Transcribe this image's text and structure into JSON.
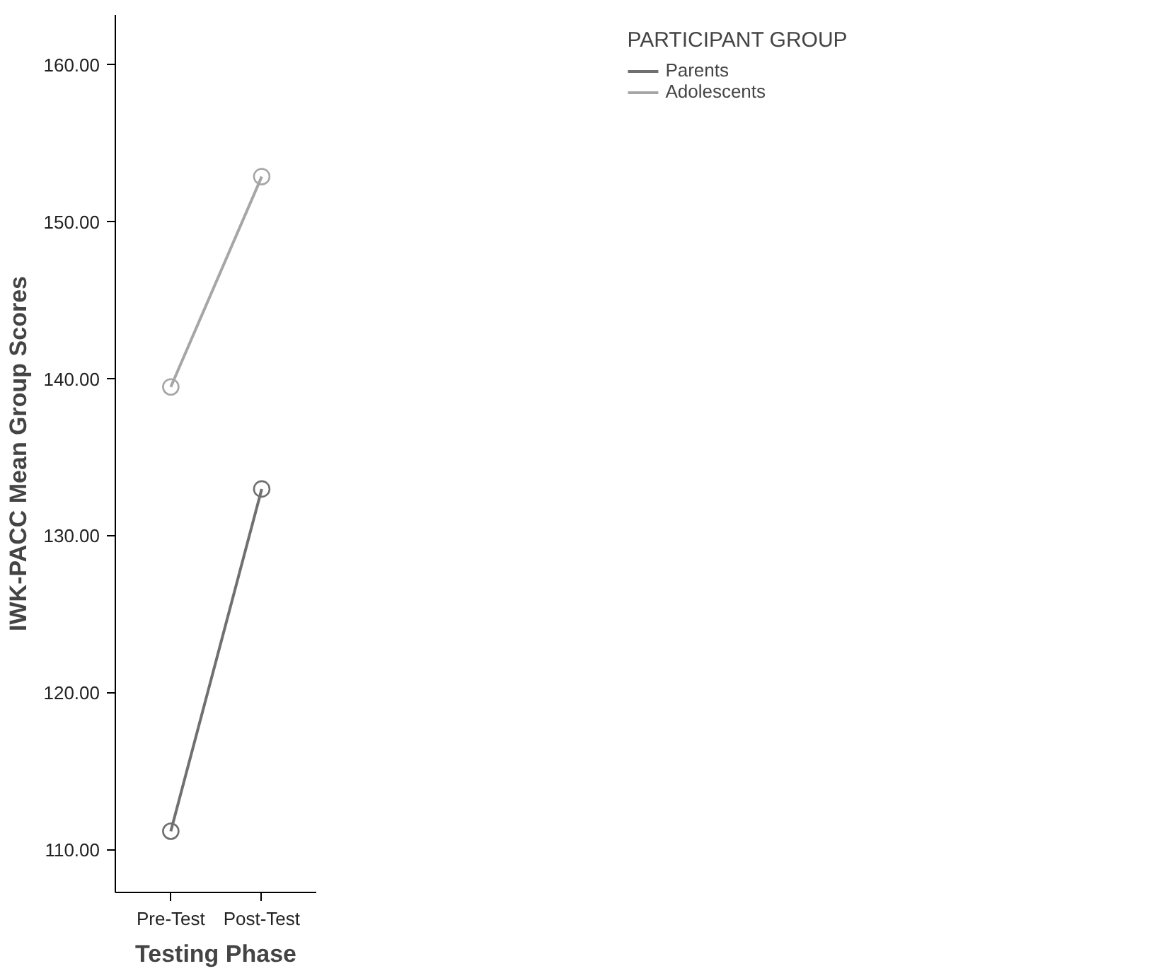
{
  "chart_data": {
    "type": "line",
    "xlabel": "Testing Phase",
    "ylabel": "IWK-PACC Mean Group Scores",
    "legend_title": "PARTICIPANT GROUP",
    "categories": [
      "Pre-Test",
      "Post-Test"
    ],
    "series": [
      {
        "name": "Parents",
        "color": "#707070",
        "values": [
          111.2,
          133.0
        ]
      },
      {
        "name": "Adolescents",
        "color": "#a6a6a6",
        "values": [
          139.5,
          152.9
        ]
      }
    ],
    "ylim": [
      107.3,
      163.2
    ],
    "yticks": [
      {
        "value": 110,
        "label": "110.00"
      },
      {
        "value": 120,
        "label": "120.00"
      },
      {
        "value": 130,
        "label": "130.00"
      },
      {
        "value": 140,
        "label": "140.00"
      },
      {
        "value": 150,
        "label": "150.00"
      },
      {
        "value": 160,
        "label": "160.00"
      }
    ],
    "grid": false,
    "legend": "top right",
    "marker": "circle",
    "line_style": "solid"
  }
}
